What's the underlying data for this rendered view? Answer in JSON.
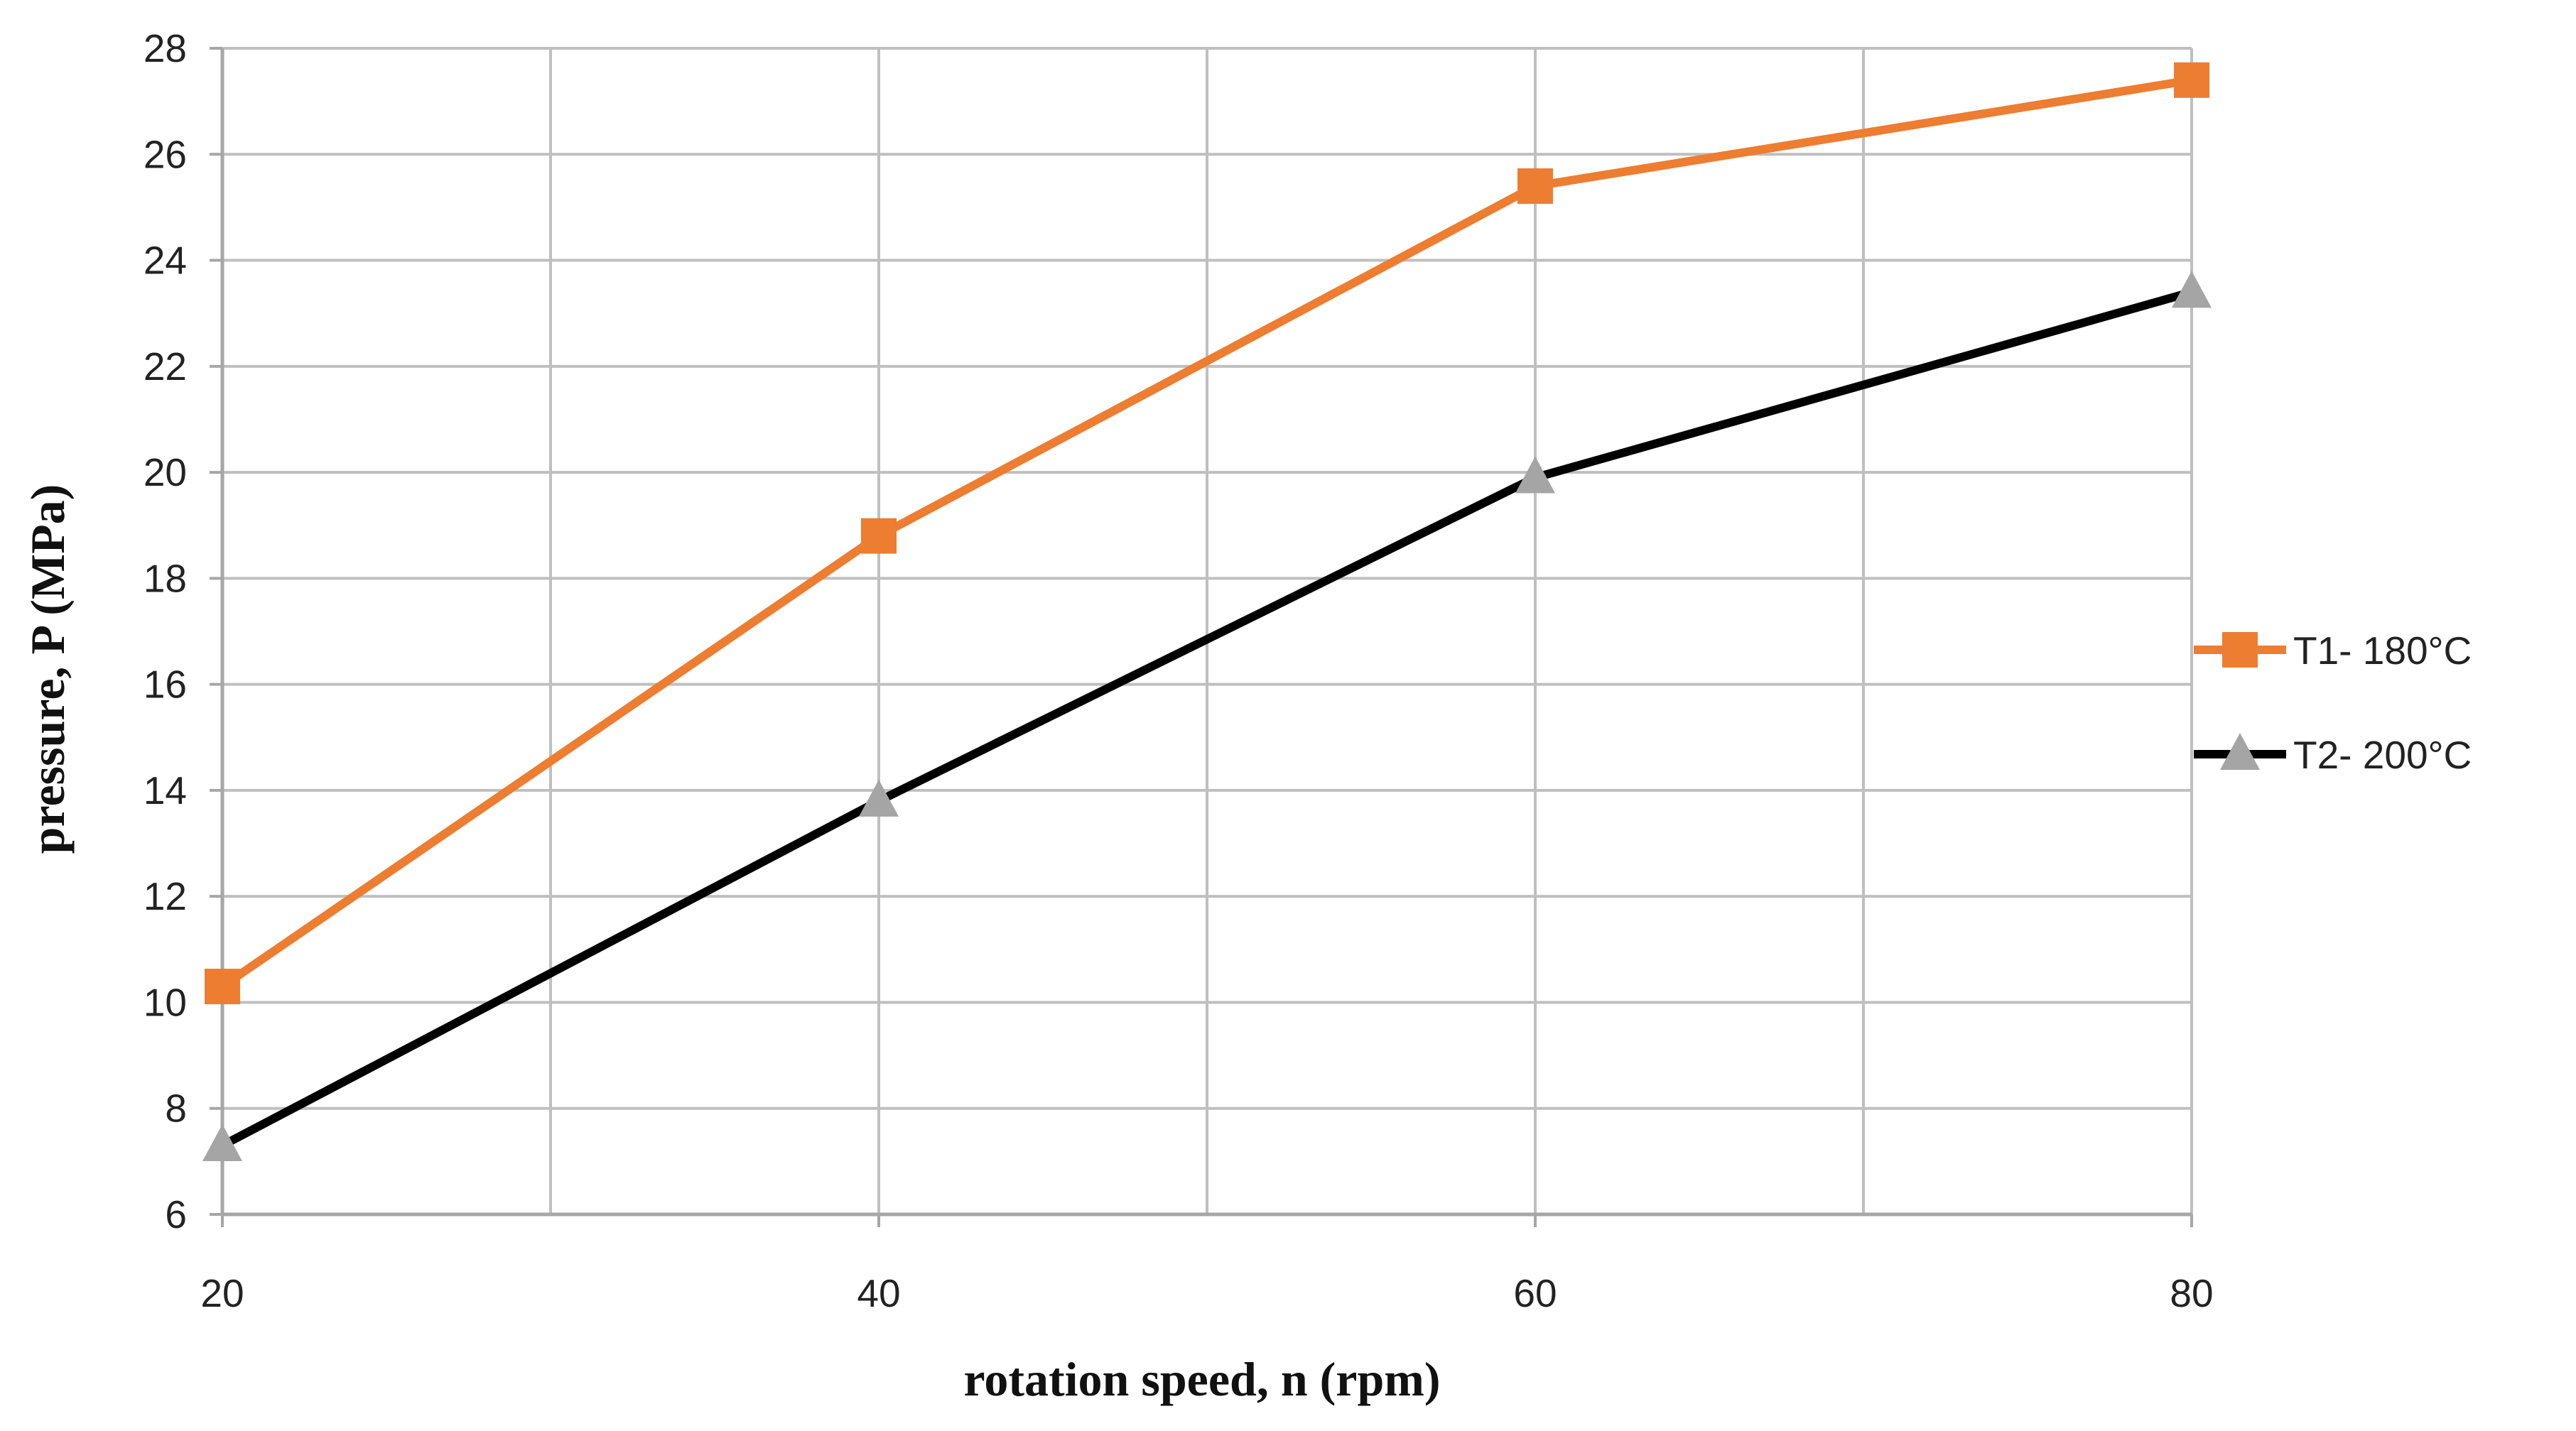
{
  "chart_data": {
    "type": "line",
    "title": "",
    "xlabel": "rotation speed, n (rpm)",
    "ylabel": "pressure, P  (MPa)",
    "x": [
      20,
      40,
      60,
      80
    ],
    "xlim": [
      20,
      80
    ],
    "ylim": [
      6,
      28
    ],
    "xticks": [
      20,
      40,
      60,
      80
    ],
    "xgrid": [
      20,
      30,
      40,
      50,
      60,
      70,
      80
    ],
    "yticks": [
      6,
      8,
      10,
      12,
      14,
      16,
      18,
      20,
      22,
      24,
      26,
      28
    ],
    "grid": true,
    "legend_position": "right",
    "series": [
      {
        "name": "T1- 180°C",
        "values": [
          10.3,
          18.8,
          25.4,
          27.4
        ],
        "color": "#ED7D31",
        "marker": "square",
        "marker_color": "#ED7D31"
      },
      {
        "name": "T2- 200°C",
        "values": [
          7.3,
          13.8,
          19.9,
          23.4
        ],
        "color": "#000000",
        "marker": "triangle",
        "marker_color": "#A5A5A5"
      }
    ]
  }
}
